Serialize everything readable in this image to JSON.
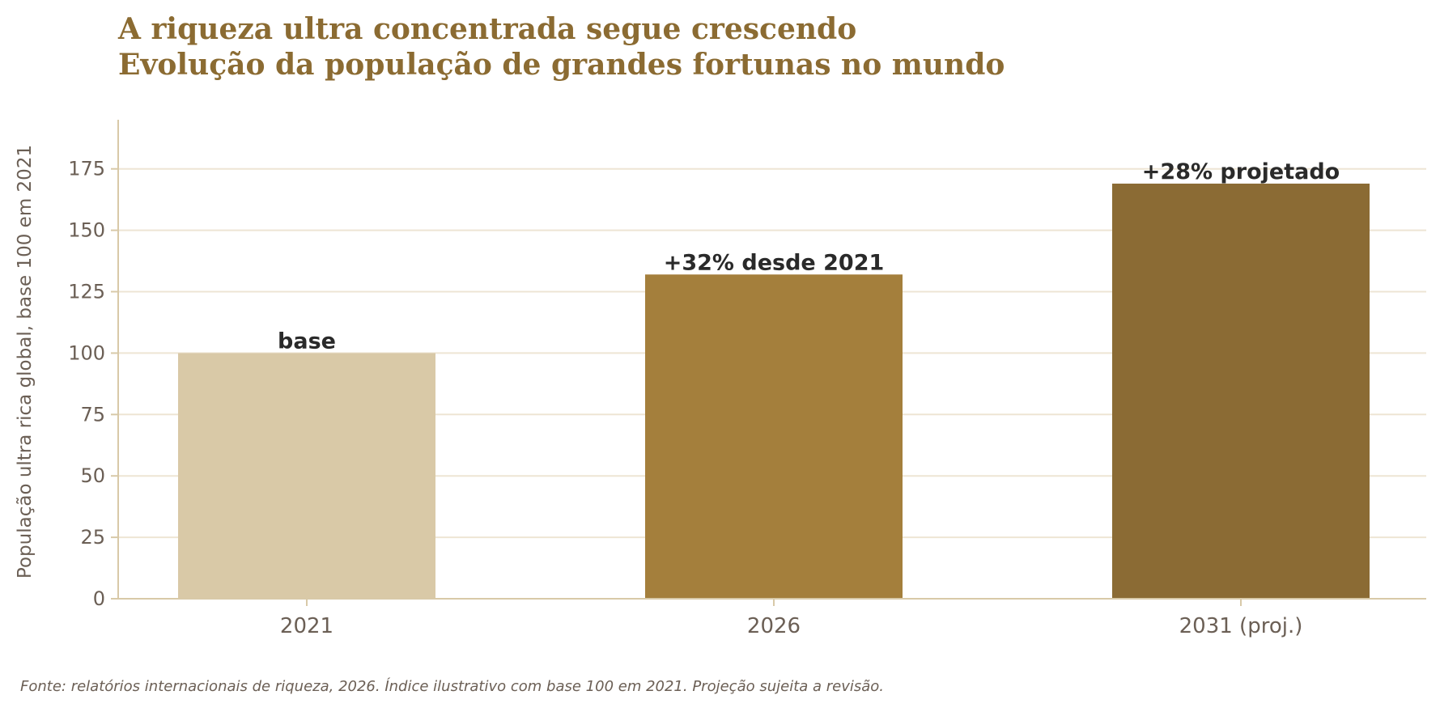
{
  "title_lines": [
    "A riqueza ultra concentrada segue crescendo",
    "Evolução da população de grandes fortunas no mundo"
  ],
  "source_note": "Fonte: relatórios internacionais de riqueza, 2026. Índice ilustrativo com base 100 em 2021. Projeção sujeita a revisão.",
  "colors": {
    "title": "#8b6b32",
    "axis": "#d8c9a8",
    "grid": "#eee5d4",
    "tick_text": "#6b5f55",
    "label_text": "#2a2a2a"
  },
  "chart_data": {
    "type": "bar",
    "title": "A riqueza ultra concentrada segue crescendo\nEvolução da população de grandes fortunas no mundo",
    "xlabel": "",
    "ylabel": "População ultra rica global, base 100 em 2021",
    "categories": [
      "2021",
      "2026",
      "2031 (proj.)"
    ],
    "values": [
      100,
      132,
      169
    ],
    "bar_colors": [
      "#d9c9a7",
      "#a47f3c",
      "#8b6b34"
    ],
    "data_labels": [
      "base",
      "+32% desde 2021",
      "+28% projetado"
    ],
    "ylim": [
      0,
      195
    ],
    "yticks": [
      0,
      25,
      50,
      75,
      100,
      125,
      150,
      175
    ],
    "grid": "horizontal",
    "legend": "none"
  }
}
